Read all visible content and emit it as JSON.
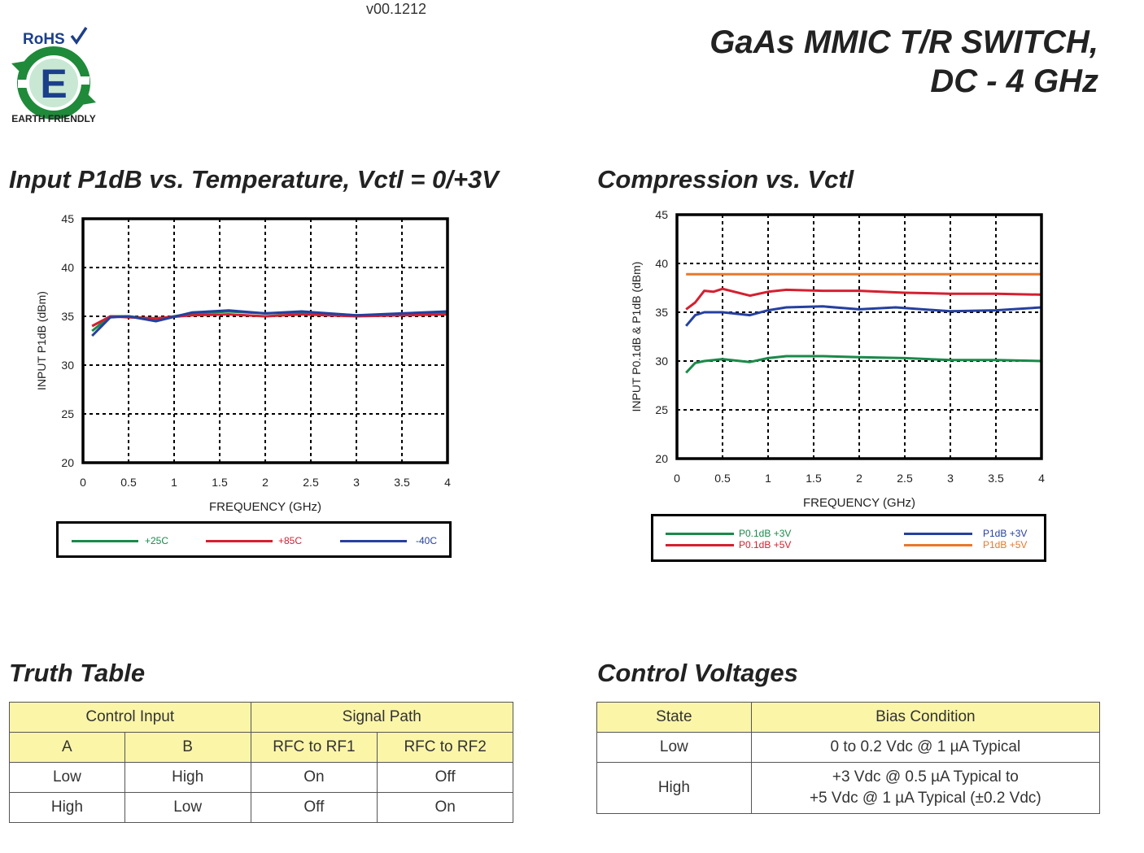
{
  "header": {
    "version": "v00.1212",
    "title_line1": "GaAs MMIC T/R SWITCH,",
    "title_line2": "DC - 4 GHz",
    "logo": {
      "rohs": "RoHS",
      "letter": "E",
      "tagline": "EARTH FRIENDLY",
      "icon": "earth-friendly-recycle-icon"
    }
  },
  "sections": {
    "chart1_title": "Input P1dB vs. Temperature, Vctl = 0/+3V",
    "chart2_title": "Compression vs. Vctl",
    "truth_table_title": "Truth Table",
    "control_voltages_title": "Control Voltages"
  },
  "chart_data": [
    {
      "type": "line",
      "title": "Input P1dB vs. Temperature, Vctl = 0/+3V",
      "xlabel": "FREQUENCY (GHz)",
      "ylabel": "INPUT P1dB (dBm)",
      "xlim": [
        0,
        4
      ],
      "ylim": [
        20,
        45
      ],
      "xticks": [
        "0",
        "0.5",
        "1",
        "1.5",
        "2",
        "2.5",
        "3",
        "3.5",
        "4"
      ],
      "yticks": [
        "20",
        "25",
        "30",
        "35",
        "40",
        "45"
      ],
      "grid": true,
      "legend_position": "bottom",
      "series": [
        {
          "name": "+25C",
          "color": "#1a8a4a",
          "x": [
            0.1,
            0.3,
            0.5,
            0.8,
            1.2,
            1.6,
            2.0,
            2.4,
            3.0,
            3.5,
            4.0
          ],
          "y": [
            33.5,
            35.0,
            35.0,
            34.7,
            35.3,
            35.5,
            35.3,
            35.4,
            35.1,
            35.2,
            35.4
          ]
        },
        {
          "name": "+85C",
          "color": "#d42030",
          "x": [
            0.1,
            0.3,
            0.5,
            0.8,
            1.2,
            1.6,
            2.0,
            2.4,
            3.0,
            3.5,
            4.0
          ],
          "y": [
            34.0,
            35.0,
            34.9,
            34.8,
            35.1,
            35.2,
            35.0,
            35.2,
            35.0,
            35.1,
            35.2
          ]
        },
        {
          "name": "-40C",
          "color": "#2540a0",
          "x": [
            0.1,
            0.3,
            0.5,
            0.8,
            1.2,
            1.6,
            2.0,
            2.4,
            3.0,
            3.5,
            4.0
          ],
          "y": [
            33.0,
            34.9,
            35.0,
            34.5,
            35.4,
            35.6,
            35.3,
            35.5,
            35.1,
            35.3,
            35.5
          ]
        }
      ]
    },
    {
      "type": "line",
      "title": "Compression vs. Vctl",
      "xlabel": "FREQUENCY (GHz)",
      "ylabel": "INPUT P0.1dB  & P1dB (dBm)",
      "xlim": [
        0,
        4
      ],
      "ylim": [
        20,
        45
      ],
      "xticks": [
        "0",
        "0.5",
        "1",
        "1.5",
        "2",
        "2.5",
        "3",
        "3.5",
        "4"
      ],
      "yticks": [
        "20",
        "25",
        "30",
        "35",
        "40",
        "45"
      ],
      "grid": true,
      "legend_position": "bottom",
      "series": [
        {
          "name": "P0.1dB +3V",
          "color": "#1a8a4a",
          "x": [
            0.1,
            0.2,
            0.3,
            0.5,
            0.8,
            1.0,
            1.2,
            1.6,
            2.0,
            2.5,
            3.0,
            3.5,
            4.0
          ],
          "y": [
            28.8,
            29.8,
            30.0,
            30.2,
            29.9,
            30.3,
            30.5,
            30.5,
            30.4,
            30.3,
            30.1,
            30.1,
            30.0
          ]
        },
        {
          "name": "P0.1dB +5V",
          "color": "#d42030",
          "x": [
            0.1,
            0.2,
            0.3,
            0.4,
            0.5,
            0.8,
            1.0,
            1.2,
            1.6,
            2.0,
            2.5,
            3.0,
            3.5,
            4.0
          ],
          "y": [
            35.3,
            36.0,
            37.2,
            37.1,
            37.4,
            36.7,
            37.1,
            37.3,
            37.2,
            37.2,
            37.0,
            36.9,
            36.9,
            36.8
          ]
        },
        {
          "name": "P1dB +3V",
          "color": "#2540a0",
          "x": [
            0.1,
            0.2,
            0.3,
            0.5,
            0.8,
            1.0,
            1.2,
            1.6,
            2.0,
            2.4,
            3.0,
            3.5,
            4.0
          ],
          "y": [
            33.6,
            34.7,
            35.0,
            35.0,
            34.7,
            35.2,
            35.5,
            35.6,
            35.3,
            35.5,
            35.1,
            35.2,
            35.5
          ]
        },
        {
          "name": "P1dB +5V",
          "color": "#e8782a",
          "x": [
            0.1,
            1.0,
            2.0,
            3.0,
            4.0
          ],
          "y": [
            38.9,
            38.9,
            38.9,
            38.9,
            38.9
          ]
        }
      ]
    }
  ],
  "truth_table": {
    "group_headers": [
      "Control Input",
      "Signal Path"
    ],
    "sub_headers": [
      "A",
      "B",
      "RFC to RF1",
      "RFC to RF2"
    ],
    "rows": [
      [
        "Low",
        "High",
        "On",
        "Off"
      ],
      [
        "High",
        "Low",
        "Off",
        "On"
      ]
    ]
  },
  "control_voltages": {
    "headers": [
      "State",
      "Bias Condition"
    ],
    "rows": [
      {
        "state": "Low",
        "bias_line1": "0 to 0.2 Vdc @ 1 µA Typical",
        "bias_line2": ""
      },
      {
        "state": "High",
        "bias_line1": "+3 Vdc @ 0.5 µA Typical to",
        "bias_line2": "+5 Vdc @ 1 µA Typical (±0.2 Vdc)"
      }
    ]
  }
}
